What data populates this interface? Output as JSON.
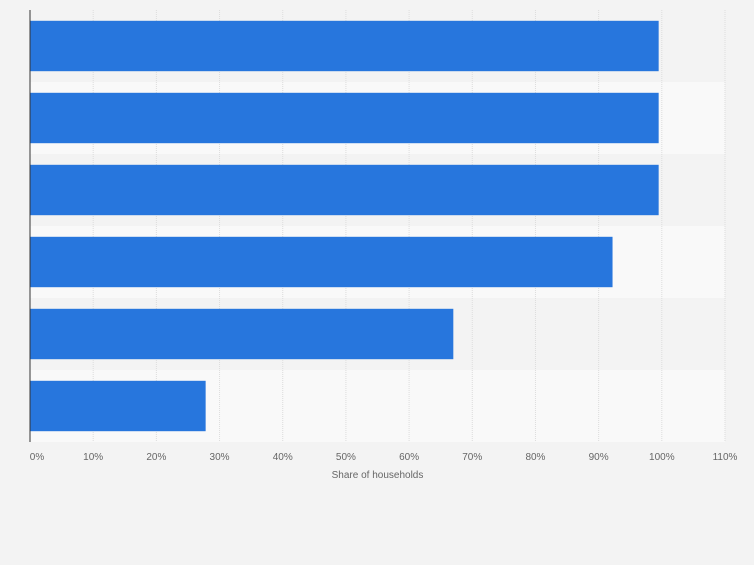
{
  "chart_data": {
    "type": "bar",
    "orientation": "horizontal",
    "title": "",
    "xlabel": "Share of households",
    "ylabel": "",
    "categories": [
      "",
      "",
      "",
      "",
      "",
      ""
    ],
    "values": [
      99.5,
      99.5,
      99.5,
      92.2,
      67,
      27.8
    ],
    "xlim": [
      0,
      110
    ],
    "ticks": [
      0,
      10,
      20,
      30,
      40,
      50,
      60,
      70,
      80,
      90,
      100,
      110
    ],
    "tick_labels": [
      "0%",
      "10%",
      "20%",
      "30%",
      "40%",
      "50%",
      "60%",
      "70%",
      "80%",
      "90%",
      "100%",
      "110%"
    ],
    "grid": true,
    "legend": "none",
    "colors": {
      "bar": "#2776dd",
      "band_dark": "#f3f3f3",
      "band_light": "#f9f9f9",
      "grid": "#dcdcdc",
      "axis": "#333333",
      "text": "#666666"
    }
  }
}
